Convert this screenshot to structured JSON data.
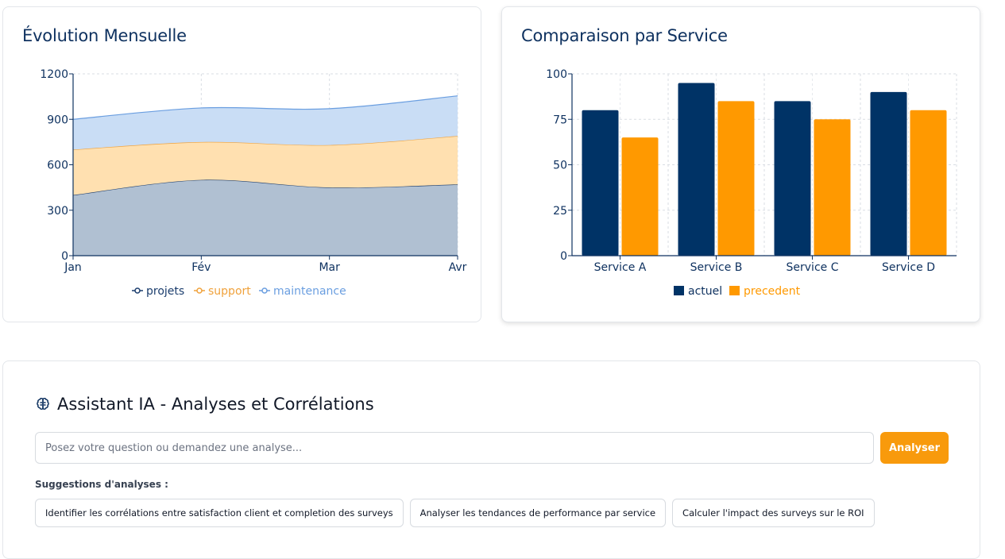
{
  "evolution": {
    "title": "Évolution Mensuelle",
    "chart_data": {
      "type": "area",
      "stacked": true,
      "categories": [
        "Jan",
        "Fév",
        "Mar",
        "Avr"
      ],
      "ylim": [
        0,
        1200
      ],
      "yticks": [
        0,
        300,
        600,
        900,
        1200
      ],
      "grid": true,
      "legend_position": "bottom",
      "series": [
        {
          "name": "projets",
          "values": [
            400,
            500,
            450,
            470
          ],
          "color": "#1b3d6d",
          "fill": "#b0c0d2"
        },
        {
          "name": "support",
          "values": [
            300,
            250,
            280,
            320
          ],
          "color": "#f0a23c",
          "fill": "#ffe0b0"
        },
        {
          "name": "maintenance",
          "values": [
            200,
            225,
            240,
            265
          ],
          "color": "#6a9ee0",
          "fill": "#c9ddf5"
        }
      ]
    }
  },
  "comparison": {
    "title": "Comparaison par Service",
    "chart_data": {
      "type": "bar",
      "categories": [
        "Service A",
        "Service B",
        "Service C",
        "Service D"
      ],
      "ylim": [
        0,
        100
      ],
      "yticks": [
        0,
        25,
        50,
        75,
        100
      ],
      "grid": true,
      "legend_position": "bottom",
      "series": [
        {
          "name": "actuel",
          "values": [
            80,
            95,
            85,
            90
          ],
          "color": "#003366"
        },
        {
          "name": "precedent",
          "values": [
            65,
            85,
            75,
            80
          ],
          "color": "#ff9900"
        }
      ]
    }
  },
  "assistant": {
    "title": "Assistant IA - Analyses et Corrélations",
    "icon": "brain-icon",
    "input_placeholder": "Posez votre question ou demandez une analyse...",
    "button_label": "Analyser",
    "suggestions_label": "Suggestions d'analyses :",
    "suggestions": [
      "Identifier les corrélations entre satisfaction client et completion des surveys",
      "Analyser les tendances de performance par service",
      "Calculer l'impact des surveys sur le ROI"
    ],
    "accent_color": "#f89a0c"
  }
}
